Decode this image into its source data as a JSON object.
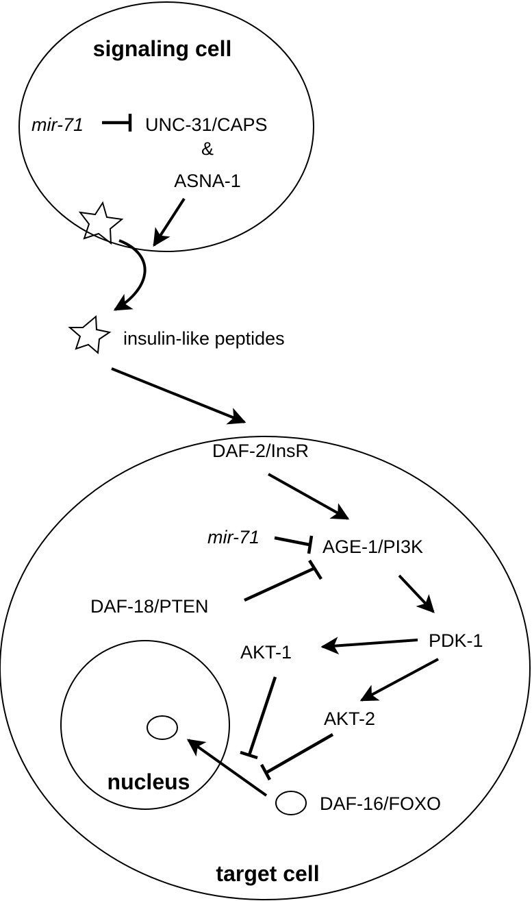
{
  "signaling_cell": {
    "title": "signaling cell",
    "mir71": "mir-71",
    "unc31": "UNC-31/CAPS",
    "amp": "&",
    "asna1": "ASNA-1"
  },
  "extracellular": {
    "peptides": "insulin-like peptides",
    "receptor": "DAF-2/InsR"
  },
  "target_cell": {
    "title": "target cell",
    "mir71": "mir-71",
    "age1": "AGE-1/PI3K",
    "daf18": "DAF-18/PTEN",
    "pdk1": "PDK-1",
    "akt1": "AKT-1",
    "akt2": "AKT-2",
    "nucleus": "nucleus",
    "daf16": "DAF-16/FOXO"
  },
  "colors": {
    "ink": "#000000",
    "background": "#ffffff"
  },
  "icons": {
    "peptide": "star-icon",
    "transcription_factor": "ellipse-icon"
  }
}
